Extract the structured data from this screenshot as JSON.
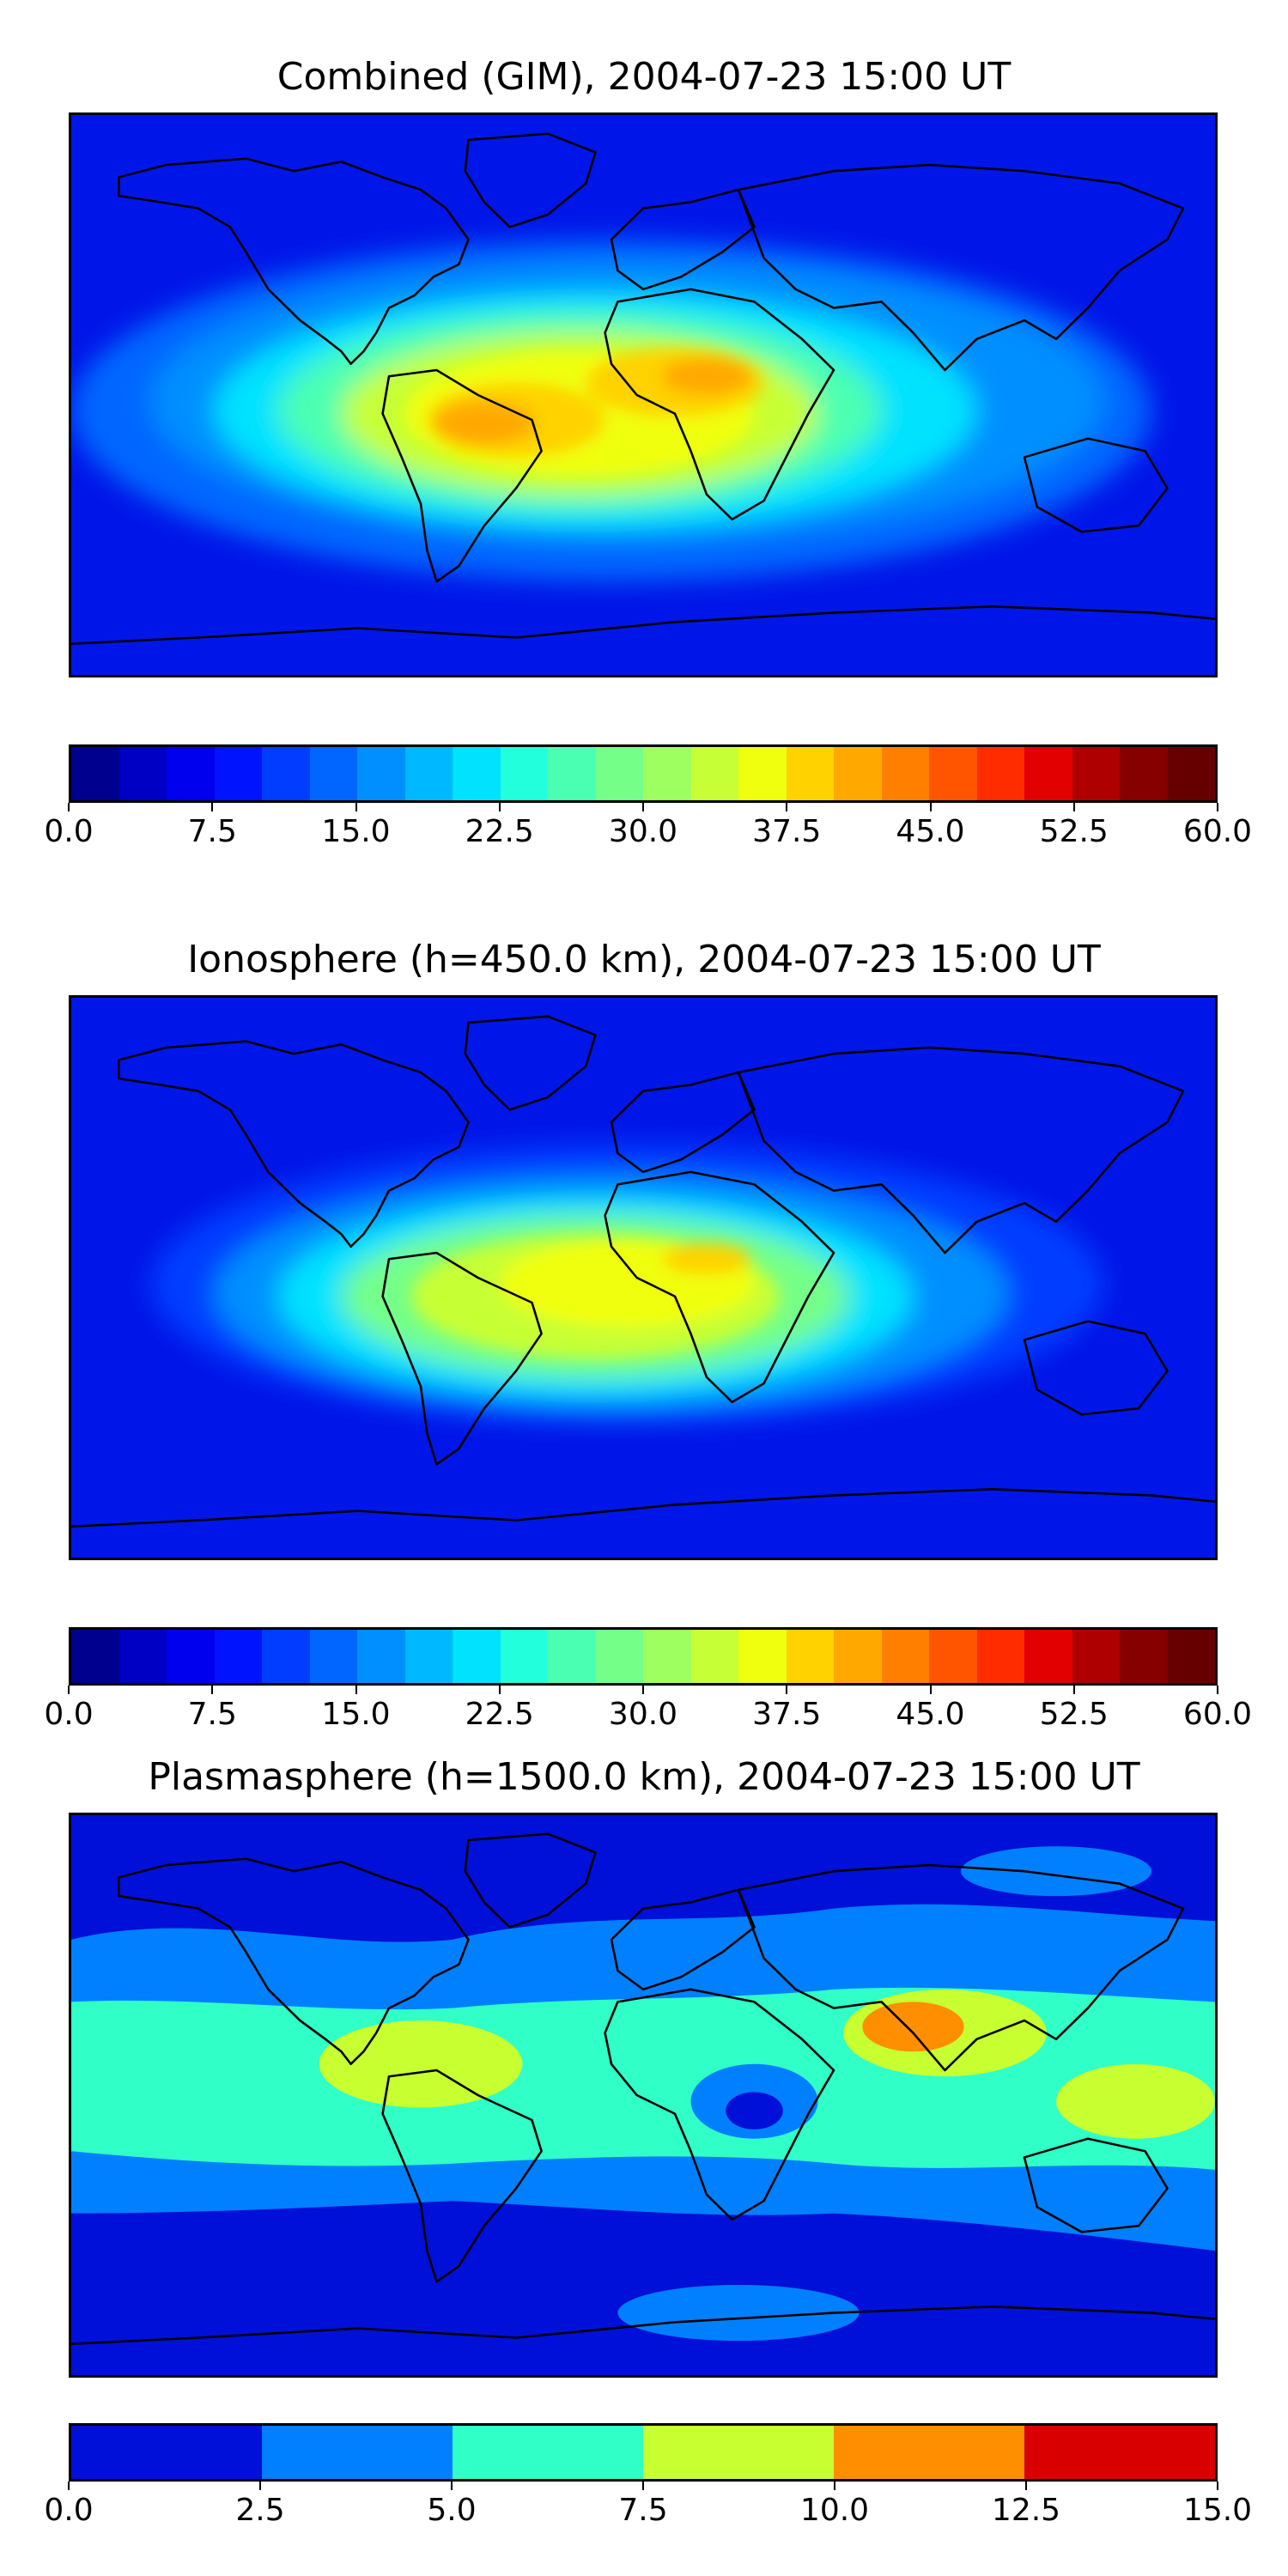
{
  "panels": [
    {
      "title": "Combined (GIM), 2004-07-23 15:00 UT",
      "colorbar": {
        "min": 0,
        "max": 60,
        "ticks": [
          "0.0",
          "7.5",
          "15.0",
          "22.5",
          "30.0",
          "37.5",
          "45.0",
          "52.5",
          "60.0"
        ],
        "colors": [
          "#00008f",
          "#0000c4",
          "#0000ee",
          "#0013ff",
          "#003dff",
          "#0066ff",
          "#008fff",
          "#00b8ff",
          "#00e2ff",
          "#21ffdc",
          "#4bffb2",
          "#74ff89",
          "#9dff60",
          "#c7ff36",
          "#f0ff0d",
          "#ffd200",
          "#ffa900",
          "#ff7f00",
          "#ff5500",
          "#ff2c00",
          "#e20000",
          "#ae0000",
          "#860000",
          "#660000"
        ]
      }
    },
    {
      "title": "Ionosphere  (h=450.0 km), 2004-07-23 15:00 UT",
      "colorbar": {
        "min": 0,
        "max": 60,
        "ticks": [
          "0.0",
          "7.5",
          "15.0",
          "22.5",
          "30.0",
          "37.5",
          "45.0",
          "52.5",
          "60.0"
        ],
        "colors": [
          "#00008f",
          "#0000c4",
          "#0000ee",
          "#0013ff",
          "#003dff",
          "#0066ff",
          "#008fff",
          "#00b8ff",
          "#00e2ff",
          "#21ffdc",
          "#4bffb2",
          "#74ff89",
          "#9dff60",
          "#c7ff36",
          "#f0ff0d",
          "#ffd200",
          "#ffa900",
          "#ff7f00",
          "#ff5500",
          "#ff2c00",
          "#e20000",
          "#ae0000",
          "#860000",
          "#660000"
        ]
      }
    },
    {
      "title": "Plasmasphere (h=1500.0 km), 2004-07-23 15:00 UT",
      "colorbar": {
        "min": 0,
        "max": 15,
        "ticks": [
          "0.0",
          "2.5",
          "5.0",
          "7.5",
          "10.0",
          "12.5",
          "15.0"
        ],
        "colors": [
          "#0010d8",
          "#0080ff",
          "#30ffc7",
          "#c7ff30",
          "#ff8f00",
          "#d80000"
        ]
      }
    }
  ]
}
